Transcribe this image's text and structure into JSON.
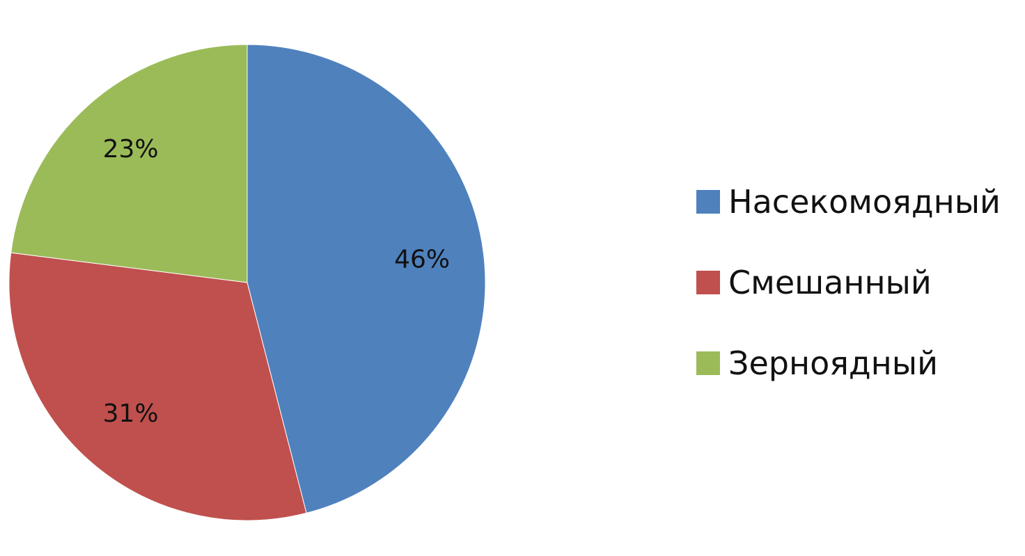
{
  "chart_data": {
    "type": "pie",
    "categories": [
      "Насекомоядный",
      "Смешанный",
      "Зерноядный"
    ],
    "values": [
      46,
      31,
      23
    ],
    "data_labels": [
      "46%",
      "31%",
      "23%"
    ],
    "colors": [
      "#4F81BD",
      "#C0504D",
      "#9BBB59"
    ],
    "legend_position": "right",
    "start": "12 o'clock, clockwise"
  },
  "legend": {
    "items": [
      {
        "label": "Насекомоядный",
        "color": "#4F81BD"
      },
      {
        "label": "Смешанный",
        "color": "#C0504D"
      },
      {
        "label": "Зерноядный",
        "color": "#9BBB59"
      }
    ]
  }
}
